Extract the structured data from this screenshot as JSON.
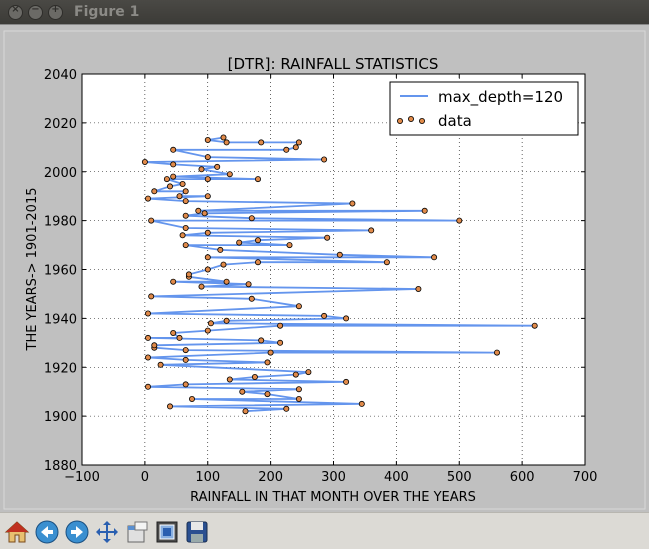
{
  "window": {
    "title": "Figure 1",
    "buttons": [
      {
        "name": "close-button",
        "glyph": "×"
      },
      {
        "name": "minimize-button",
        "glyph": "−"
      },
      {
        "name": "maximize-button",
        "glyph": "+"
      }
    ]
  },
  "toolbar": {
    "tools": [
      "home-icon",
      "back-icon",
      "forward-icon",
      "pan-icon",
      "zoom-icon",
      "subplots-icon",
      "save-icon"
    ]
  },
  "colors": {
    "figure_bg": "#bfbfbf",
    "axes_bg": "#ffffff",
    "line": "#6495ed",
    "marker_face": "#e08a4a",
    "marker_edge": "#000000"
  },
  "chart_data": {
    "type": "scatter",
    "title": "[DTR]: RAINFALL STATISTICS",
    "xlabel": "RAINFALL IN THAT MONTH OVER THE YEARS",
    "ylabel": "THE YEARS-> 1901-2015",
    "xlim": [
      -100,
      700
    ],
    "ylim": [
      1880,
      2040
    ],
    "xticks": [
      -100,
      0,
      100,
      200,
      300,
      400,
      500,
      600,
      700
    ],
    "yticks": [
      1880,
      1900,
      1920,
      1940,
      1960,
      1980,
      2000,
      2020,
      2040
    ],
    "grid": true,
    "legend_position": "upper-right",
    "series": [
      {
        "name": "max_depth=120",
        "kind": "line"
      },
      {
        "name": "data",
        "kind": "scatter"
      }
    ],
    "points": [
      [
        160,
        1902
      ],
      [
        225,
        1903
      ],
      [
        40,
        1904
      ],
      [
        345,
        1905
      ],
      [
        75,
        1907
      ],
      [
        245,
        1907
      ],
      [
        195,
        1909
      ],
      [
        155,
        1910
      ],
      [
        245,
        1911
      ],
      [
        5,
        1912
      ],
      [
        65,
        1913
      ],
      [
        320,
        1914
      ],
      [
        135,
        1915
      ],
      [
        175,
        1916
      ],
      [
        240,
        1917
      ],
      [
        260,
        1918
      ],
      [
        25,
        1921
      ],
      [
        195,
        1922
      ],
      [
        65,
        1923
      ],
      [
        5,
        1924
      ],
      [
        200,
        1926
      ],
      [
        560,
        1926
      ],
      [
        65,
        1927
      ],
      [
        15,
        1928
      ],
      [
        15,
        1929
      ],
      [
        215,
        1930
      ],
      [
        185,
        1931
      ],
      [
        5,
        1932
      ],
      [
        55,
        1932
      ],
      [
        45,
        1934
      ],
      [
        100,
        1935
      ],
      [
        215,
        1937
      ],
      [
        620,
        1937
      ],
      [
        105,
        1938
      ],
      [
        130,
        1939
      ],
      [
        320,
        1940
      ],
      [
        285,
        1941
      ],
      [
        5,
        1942
      ],
      [
        245,
        1945
      ],
      [
        170,
        1948
      ],
      [
        10,
        1949
      ],
      [
        435,
        1952
      ],
      [
        90,
        1953
      ],
      [
        165,
        1954
      ],
      [
        45,
        1955
      ],
      [
        130,
        1955
      ],
      [
        70,
        1957
      ],
      [
        70,
        1958
      ],
      [
        100,
        1960
      ],
      [
        125,
        1962
      ],
      [
        180,
        1963
      ],
      [
        385,
        1963
      ],
      [
        100,
        1965
      ],
      [
        460,
        1965
      ],
      [
        310,
        1966
      ],
      [
        120,
        1968
      ],
      [
        65,
        1970
      ],
      [
        230,
        1970
      ],
      [
        180,
        1972
      ],
      [
        150,
        1971
      ],
      [
        290,
        1973
      ],
      [
        60,
        1974
      ],
      [
        100,
        1975
      ],
      [
        360,
        1976
      ],
      [
        65,
        1977
      ],
      [
        10,
        1980
      ],
      [
        500,
        1980
      ],
      [
        170,
        1981
      ],
      [
        65,
        1982
      ],
      [
        95,
        1983
      ],
      [
        445,
        1984
      ],
      [
        85,
        1984
      ],
      [
        330,
        1987
      ],
      [
        65,
        1988
      ],
      [
        5,
        1989
      ],
      [
        100,
        1990
      ],
      [
        55,
        1990
      ],
      [
        65,
        1992
      ],
      [
        15,
        1992
      ],
      [
        40,
        1994
      ],
      [
        60,
        1995
      ],
      [
        35,
        1997
      ],
      [
        100,
        1997
      ],
      [
        180,
        1997
      ],
      [
        45,
        1998
      ],
      [
        135,
        1999
      ],
      [
        90,
        2001
      ],
      [
        115,
        2002
      ],
      [
        45,
        2003
      ],
      [
        0,
        2004
      ],
      [
        285,
        2005
      ],
      [
        100,
        2006
      ],
      [
        45,
        2009
      ],
      [
        225,
        2009
      ],
      [
        240,
        2010
      ],
      [
        245,
        2012
      ],
      [
        185,
        2012
      ],
      [
        100,
        2013
      ],
      [
        125,
        2014
      ],
      [
        130,
        2012
      ]
    ]
  }
}
